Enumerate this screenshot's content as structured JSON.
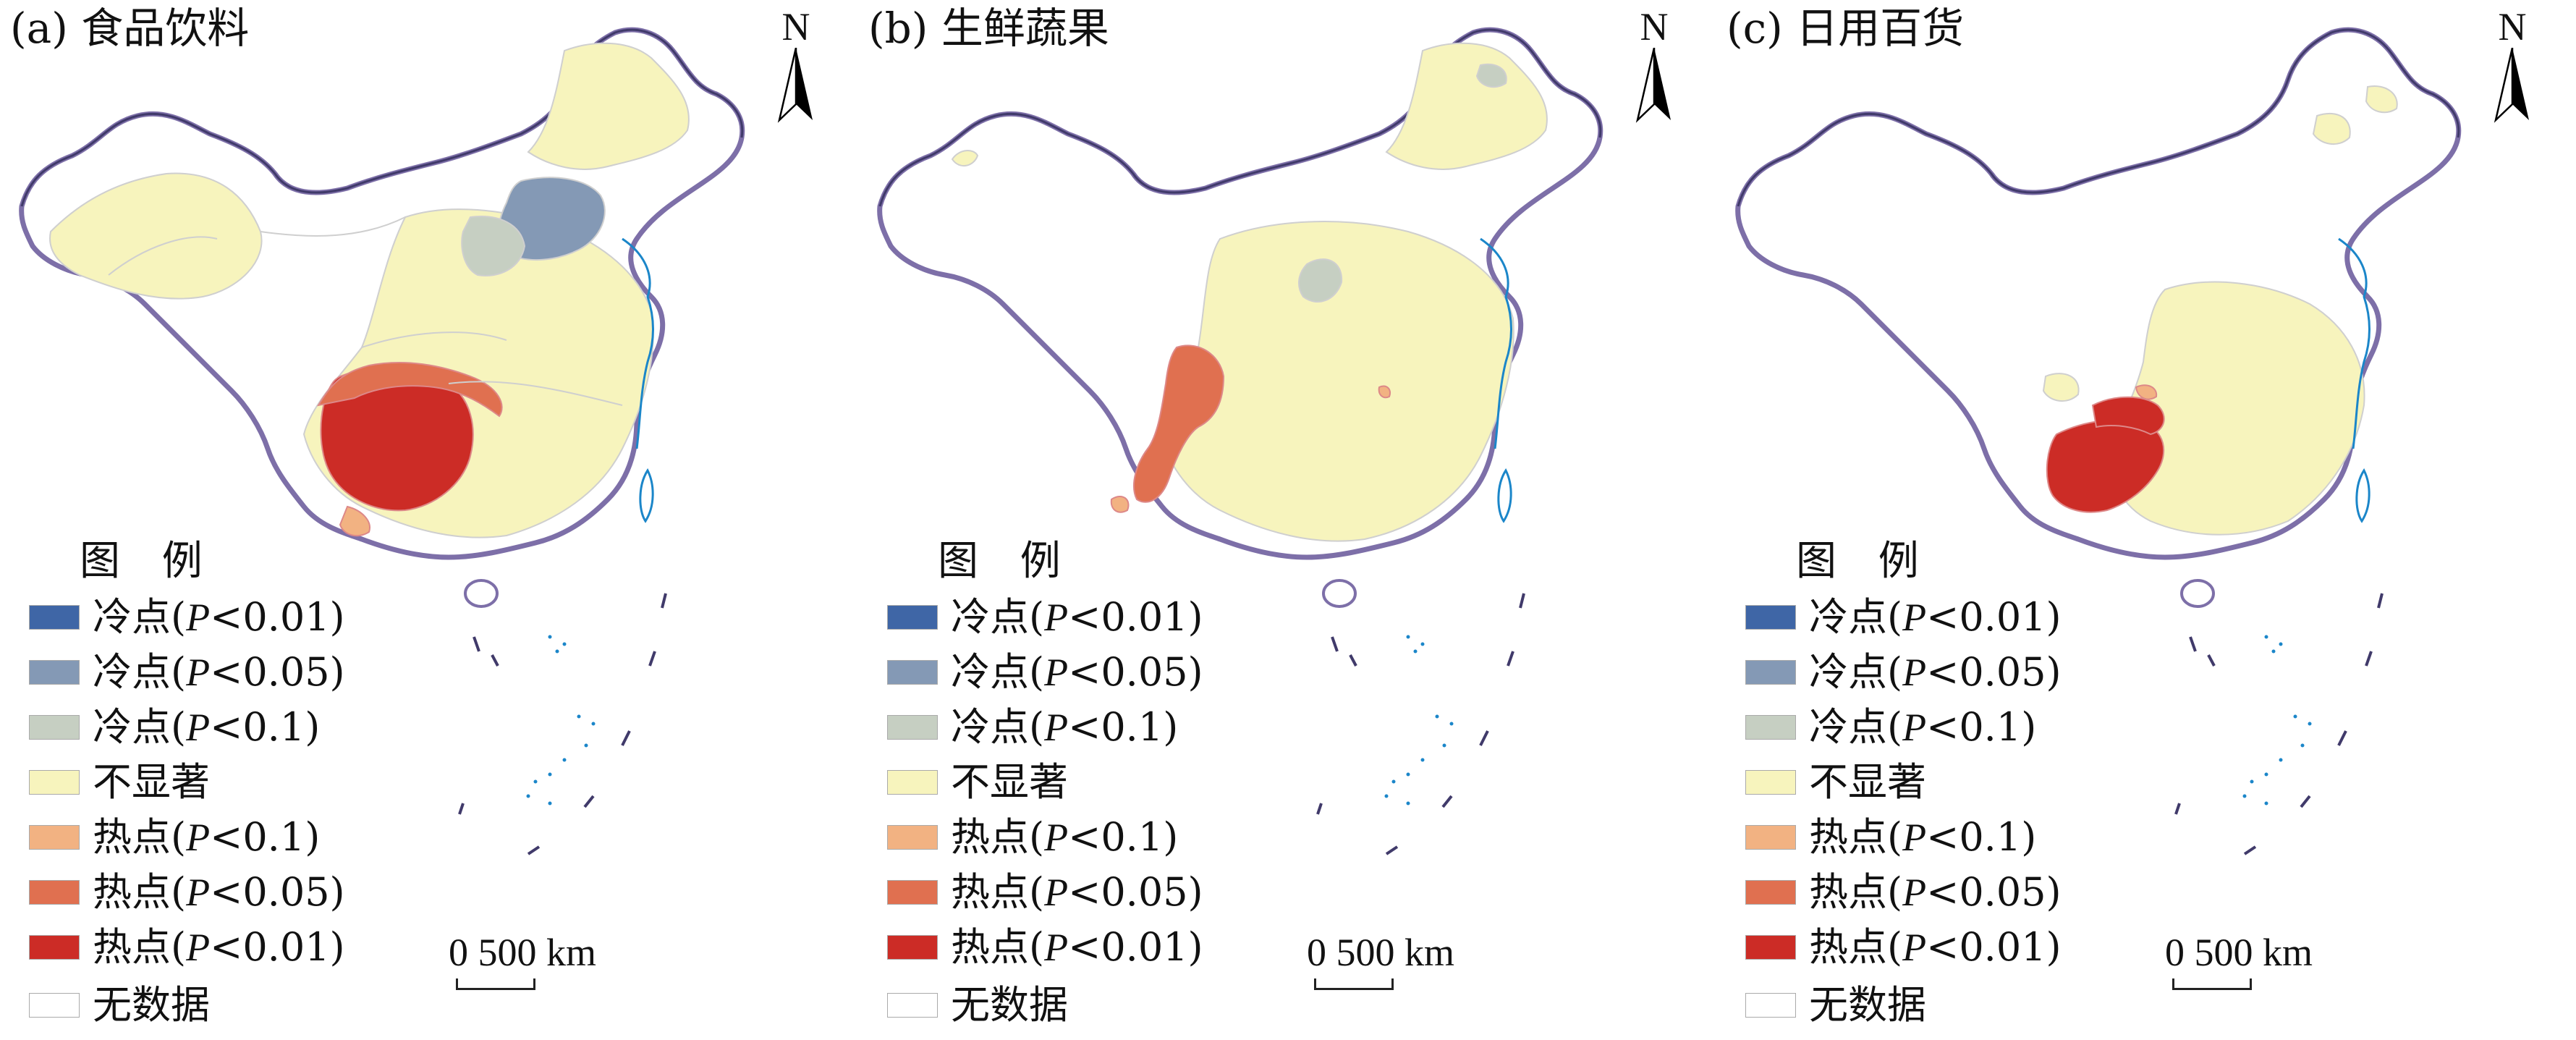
{
  "panels": [
    {
      "title": "(a) 食品饮料"
    },
    {
      "title": "(b) 生鲜蔬果"
    },
    {
      "title": "(c) 日用百货"
    }
  ],
  "north_label": "N",
  "legend": {
    "title": "图 例",
    "items": [
      {
        "label": "冷点(",
        "p": "P",
        "rest": "<0.01)",
        "color": "#3f66a6"
      },
      {
        "label": "冷点(",
        "p": "P",
        "rest": "<0.05)",
        "color": "#8499b5"
      },
      {
        "label": "冷点(",
        "p": "P",
        "rest": "<0.1)",
        "color": "#c6cfc2"
      },
      {
        "label": "不显著",
        "p": "",
        "rest": "",
        "color": "#f7f4bd"
      },
      {
        "label": "热点(",
        "p": "P",
        "rest": "<0.1)",
        "color": "#f2b282"
      },
      {
        "label": "热点(",
        "p": "P",
        "rest": "<0.05)",
        "color": "#e07050"
      },
      {
        "label": "热点(",
        "p": "P",
        "rest": "<0.01)",
        "color": "#cc2c26"
      },
      {
        "label": "无数据",
        "p": "",
        "rest": "",
        "color": "#ffffff"
      }
    ]
  },
  "scale": {
    "text": "0 500 km"
  }
}
